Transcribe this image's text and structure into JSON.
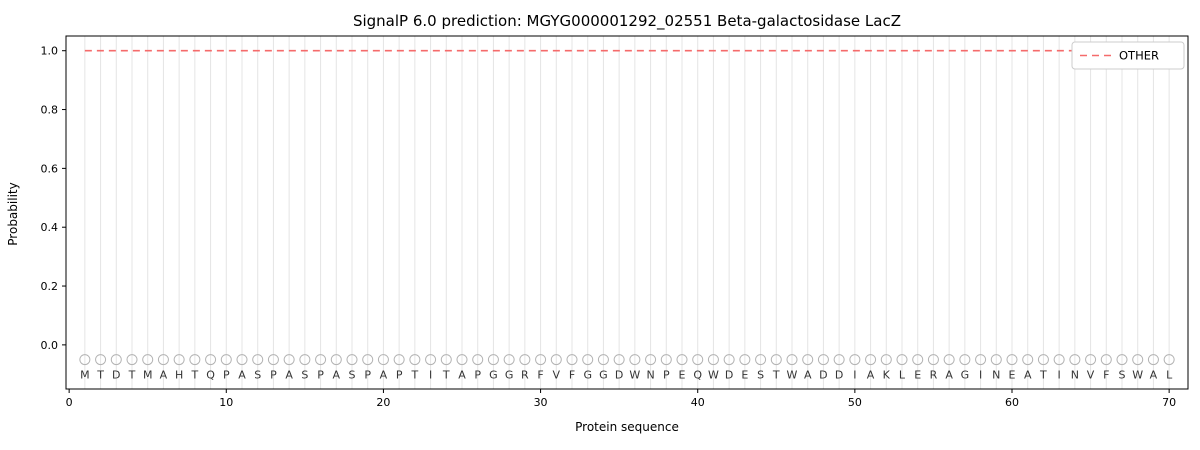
{
  "chart_data": {
    "type": "line",
    "title": "SignalP 6.0 prediction: MGYG000001292_02551 Beta-galactosidase LacZ",
    "xlabel": "Protein sequence",
    "ylabel": "Probability",
    "xlim": [
      -0.2,
      71.2
    ],
    "ylim": [
      -0.15,
      1.05
    ],
    "xticks": [
      0,
      10,
      20,
      30,
      40,
      50,
      60,
      70
    ],
    "yticks": [
      0.0,
      0.2,
      0.4,
      0.6,
      0.8,
      1.0
    ],
    "grid": {
      "vertical_per_residue": true,
      "color": "#e4e4e4"
    },
    "sequence": "MTDTMAHTQPASPASPASPAPTITAPGGRFVFGGDWNPEQWDESTWADDIAKLERAGINEATINVFSWAL",
    "markers": {
      "shape": "open-circle",
      "color": "#b3b3b3",
      "y_value": -0.05
    },
    "legend": {
      "position": "upper right",
      "entries": [
        {
          "label": "OTHER",
          "color": "#f56b6b",
          "linestyle": "dashed"
        }
      ]
    },
    "series": [
      {
        "name": "OTHER",
        "color": "#f56b6b",
        "linestyle": "dashed",
        "x": [
          1,
          2,
          3,
          4,
          5,
          6,
          7,
          8,
          9,
          10,
          11,
          12,
          13,
          14,
          15,
          16,
          17,
          18,
          19,
          20,
          21,
          22,
          23,
          24,
          25,
          26,
          27,
          28,
          29,
          30,
          31,
          32,
          33,
          34,
          35,
          36,
          37,
          38,
          39,
          40,
          41,
          42,
          43,
          44,
          45,
          46,
          47,
          48,
          49,
          50,
          51,
          52,
          53,
          54,
          55,
          56,
          57,
          58,
          59,
          60,
          61,
          62,
          63,
          64,
          65,
          66,
          67,
          68,
          69,
          70
        ],
        "values": [
          1.0,
          1.0,
          1.0,
          1.0,
          1.0,
          1.0,
          1.0,
          1.0,
          1.0,
          1.0,
          1.0,
          1.0,
          1.0,
          1.0,
          1.0,
          1.0,
          1.0,
          1.0,
          1.0,
          1.0,
          1.0,
          1.0,
          1.0,
          1.0,
          1.0,
          1.0,
          1.0,
          1.0,
          1.0,
          1.0,
          1.0,
          1.0,
          1.0,
          1.0,
          1.0,
          1.0,
          1.0,
          1.0,
          1.0,
          1.0,
          1.0,
          1.0,
          1.0,
          1.0,
          1.0,
          1.0,
          1.0,
          1.0,
          1.0,
          1.0,
          1.0,
          1.0,
          1.0,
          1.0,
          1.0,
          1.0,
          1.0,
          1.0,
          1.0,
          1.0,
          1.0,
          1.0,
          1.0,
          1.0,
          1.0,
          1.0,
          1.0,
          1.0,
          1.0,
          1.0
        ]
      }
    ]
  }
}
